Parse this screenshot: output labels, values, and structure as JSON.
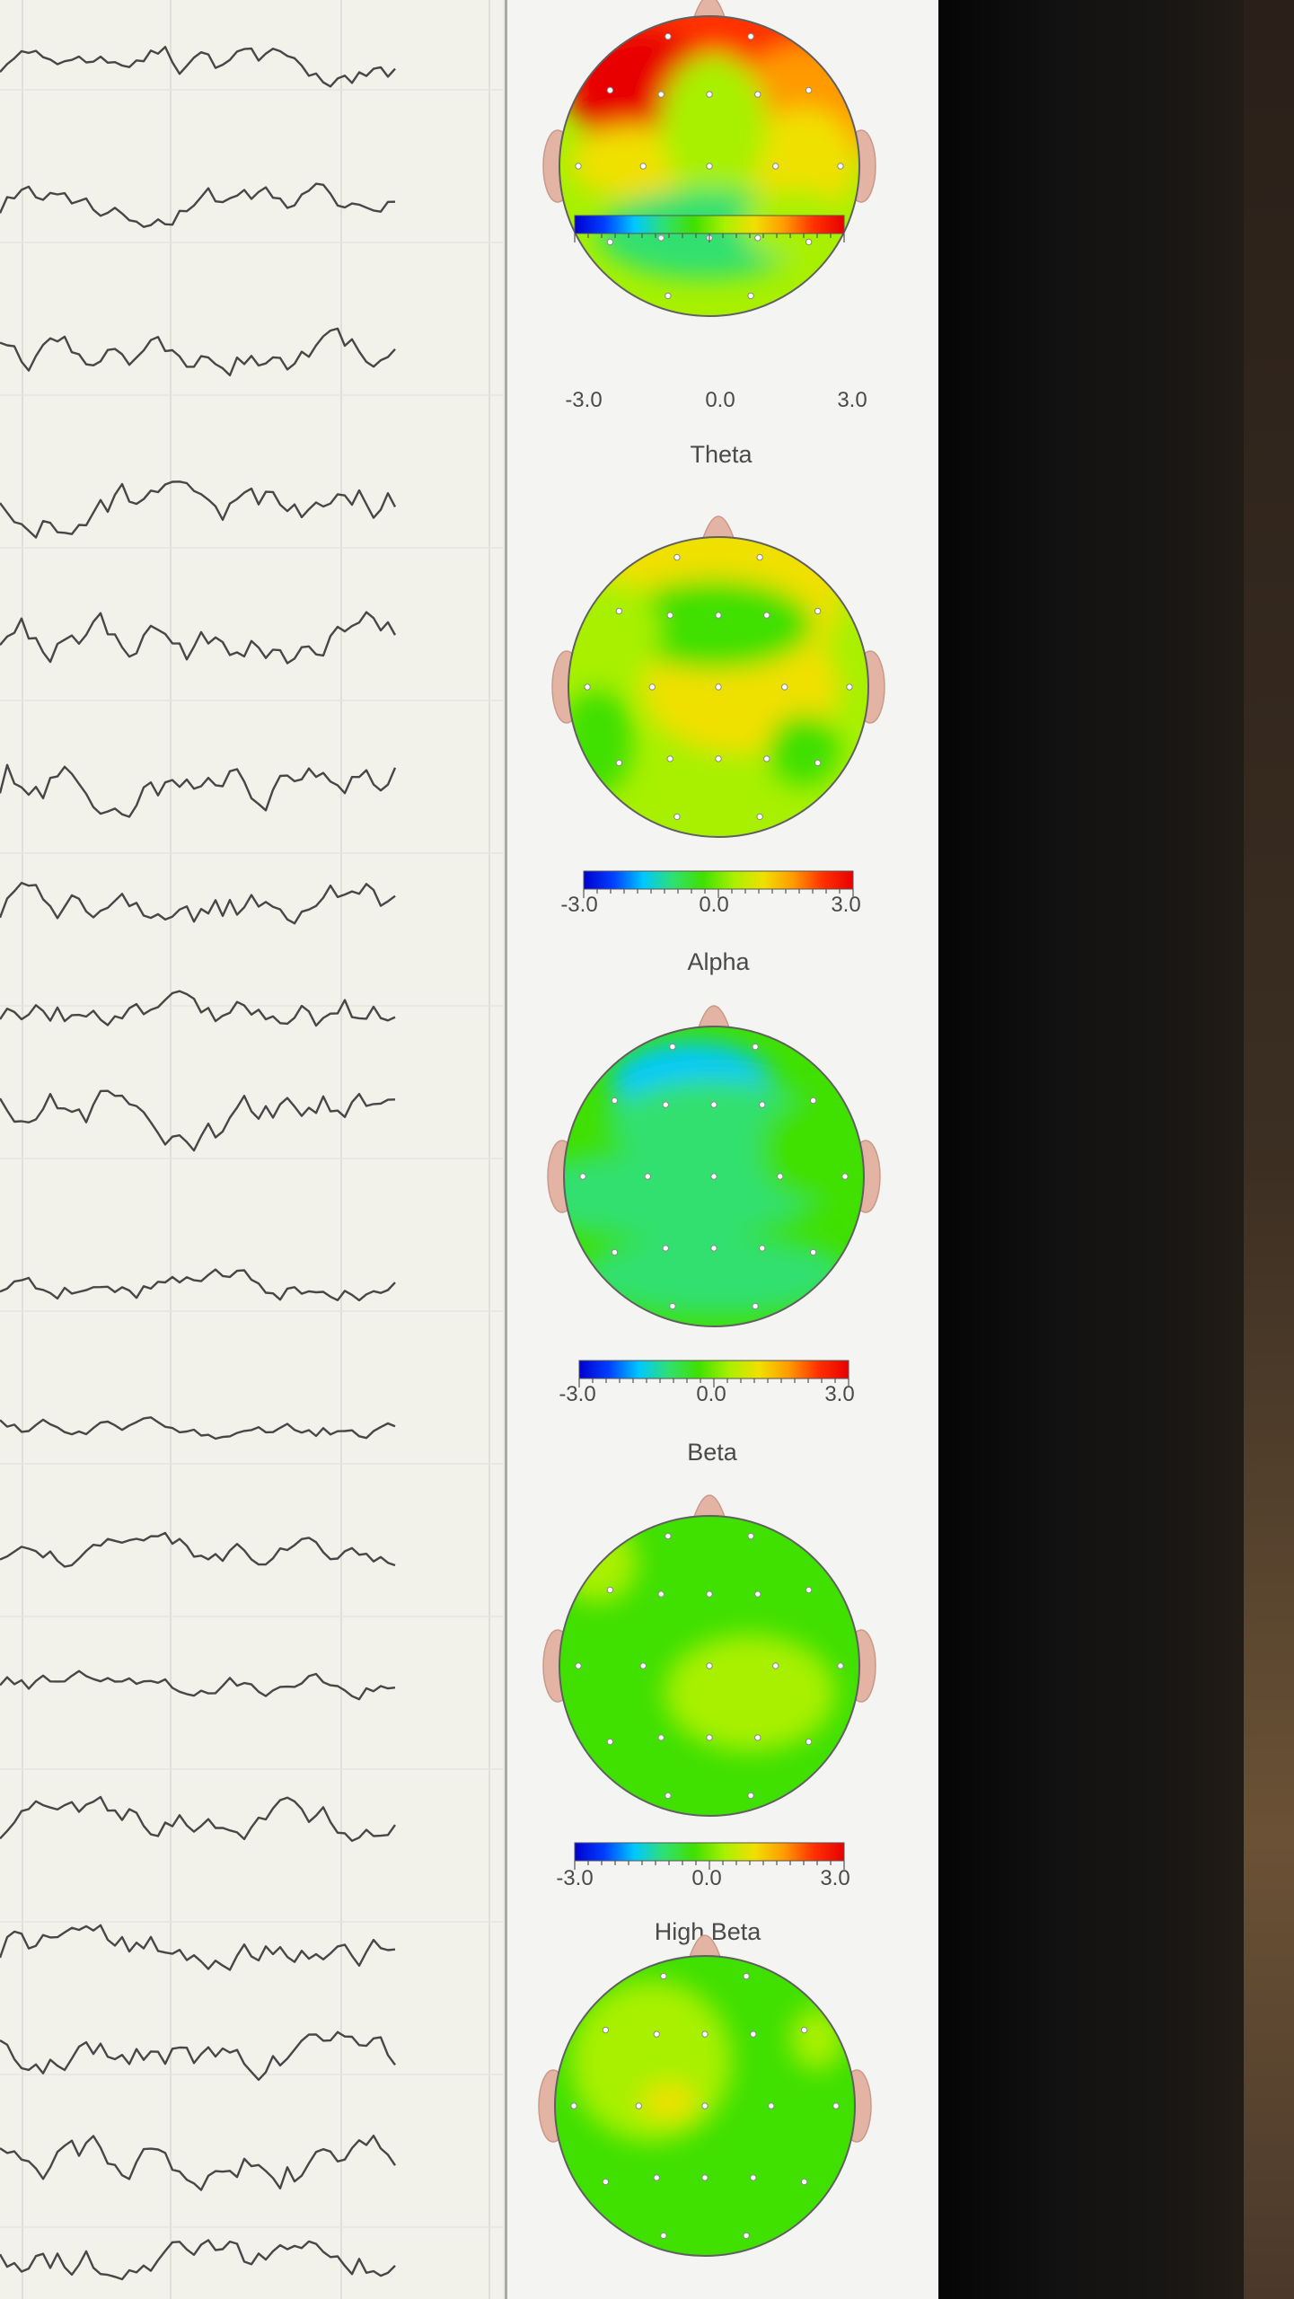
{
  "eeg_panel": {
    "channel_count": 18
  },
  "topomaps": [
    {
      "band": "",
      "colorbar": {
        "min": "-3.0",
        "mid": "0.0",
        "max": "3.0"
      }
    },
    {
      "band": "Theta",
      "colorbar": {
        "min": "-3.0",
        "mid": "0.0",
        "max": "3.0"
      }
    },
    {
      "band": "Alpha",
      "colorbar": {
        "min": "-3.0",
        "mid": "0.0",
        "max": "3.0"
      }
    },
    {
      "band": "Beta",
      "colorbar": {
        "min": "-3.0",
        "mid": "0.0",
        "max": "3.0"
      }
    },
    {
      "band": "High Beta",
      "colorbar": {
        "min": "",
        "mid": "",
        "max": ""
      }
    }
  ],
  "colors": {
    "scale": [
      "#0000d0",
      "#0040ff",
      "#00c8ff",
      "#30e070",
      "#40e000",
      "#a8f000",
      "#f0e000",
      "#ff9a00",
      "#ff3000",
      "#e80000"
    ],
    "head_outline": "#606060",
    "ears_nose": "#e3b3a3",
    "trace": "#474747"
  }
}
